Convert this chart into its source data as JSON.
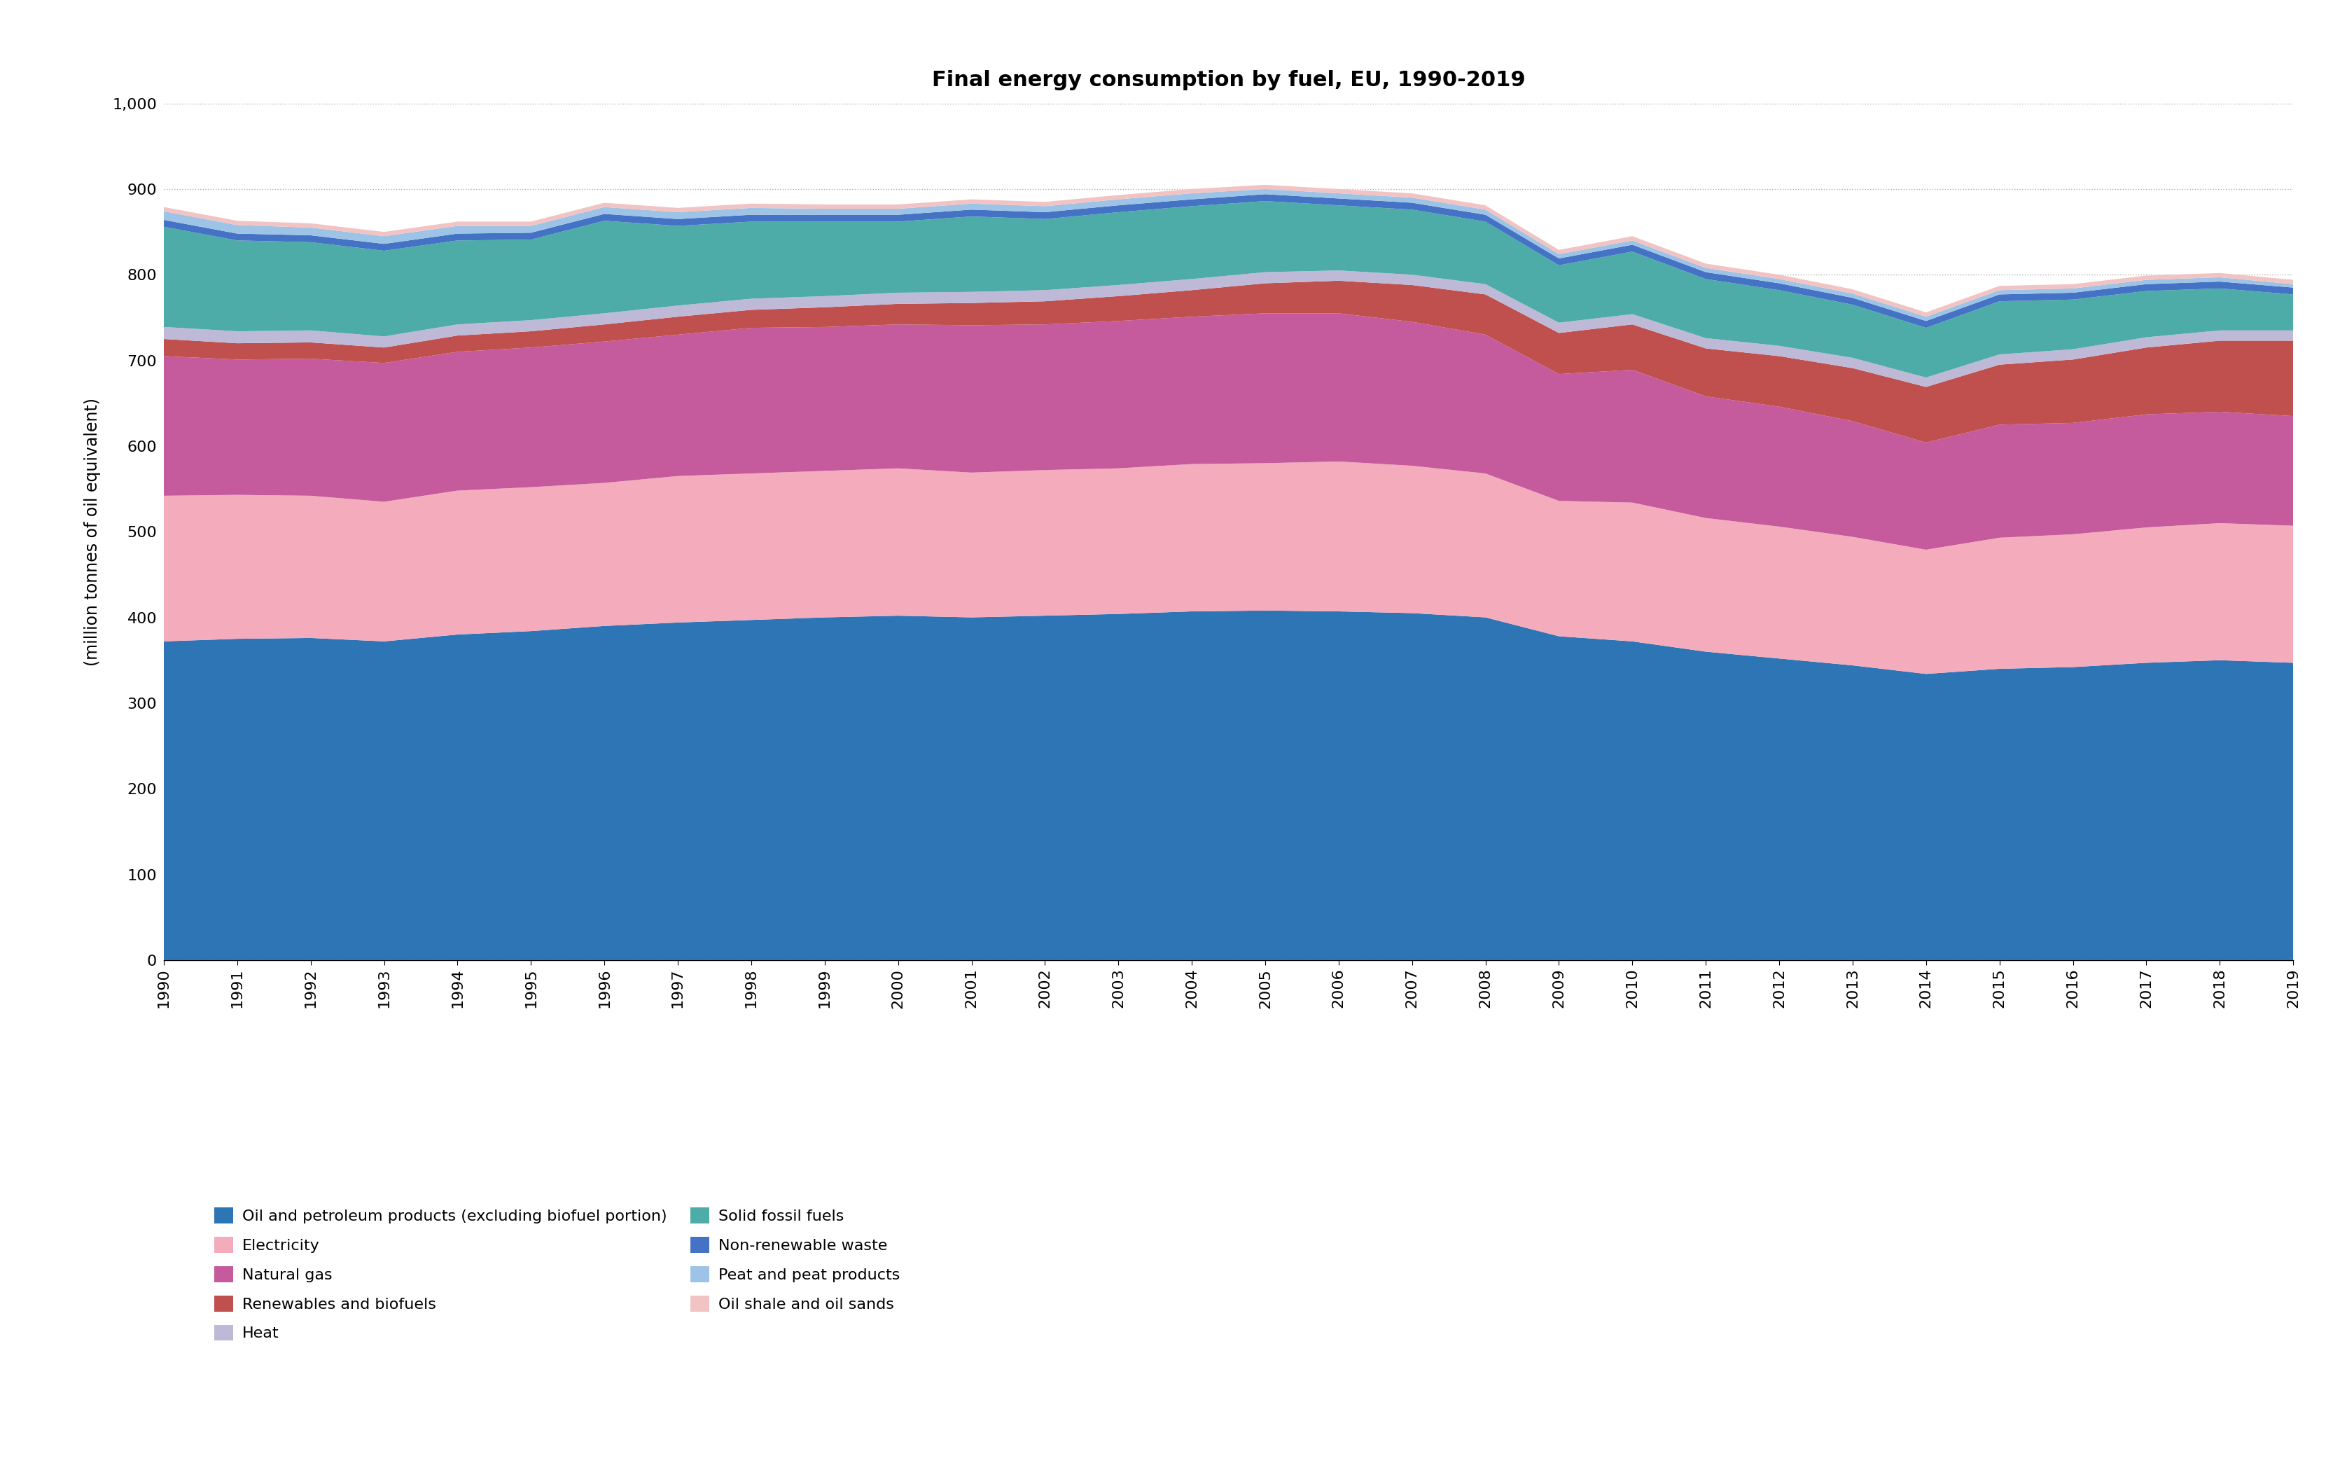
{
  "title": "Final energy consumption by fuel, EU, 1990-2019",
  "ylabel": "(million tonnes of oil equivalent)",
  "years": [
    1990,
    1991,
    1992,
    1993,
    1994,
    1995,
    1996,
    1997,
    1998,
    1999,
    2000,
    2001,
    2002,
    2003,
    2004,
    2005,
    2006,
    2007,
    2008,
    2009,
    2010,
    2011,
    2012,
    2013,
    2014,
    2015,
    2016,
    2017,
    2018,
    2019
  ],
  "series": {
    "Oil and petroleum products (excluding biofuel portion)": {
      "color": "#2E75B6",
      "data": [
        372,
        375,
        376,
        372,
        380,
        384,
        390,
        394,
        397,
        400,
        402,
        400,
        402,
        404,
        407,
        408,
        407,
        405,
        400,
        378,
        372,
        360,
        352,
        344,
        334,
        340,
        342,
        347,
        350,
        347
      ]
    },
    "Electricity": {
      "color": "#F4ABBC",
      "data": [
        170,
        168,
        166,
        163,
        168,
        168,
        167,
        171,
        171,
        171,
        172,
        169,
        170,
        170,
        172,
        172,
        175,
        172,
        168,
        158,
        162,
        156,
        154,
        150,
        145,
        153,
        155,
        158,
        160,
        160
      ]
    },
    "Natural gas": {
      "color": "#C55A9D",
      "data": [
        163,
        158,
        160,
        162,
        162,
        163,
        165,
        165,
        170,
        168,
        168,
        172,
        170,
        172,
        172,
        175,
        173,
        168,
        162,
        148,
        155,
        142,
        140,
        135,
        125,
        132,
        130,
        132,
        130,
        128
      ]
    },
    "Renewables and biofuels": {
      "color": "#C0504D",
      "data": [
        20,
        19,
        19,
        18,
        19,
        19,
        20,
        21,
        21,
        23,
        24,
        26,
        27,
        29,
        31,
        35,
        38,
        43,
        47,
        48,
        53,
        56,
        59,
        62,
        65,
        70,
        74,
        78,
        83,
        88
      ]
    },
    "Heat": {
      "color": "#BDB9D7",
      "data": [
        14,
        14,
        14,
        13,
        13,
        13,
        13,
        13,
        13,
        13,
        13,
        13,
        13,
        13,
        13,
        13,
        12,
        12,
        12,
        12,
        12,
        12,
        12,
        12,
        11,
        12,
        12,
        12,
        12,
        12
      ]
    },
    "Solid fossil fuels": {
      "color": "#4DABA8",
      "data": [
        117,
        106,
        103,
        100,
        98,
        94,
        108,
        93,
        90,
        87,
        83,
        88,
        83,
        85,
        85,
        83,
        76,
        76,
        73,
        67,
        73,
        69,
        65,
        62,
        58,
        62,
        58,
        54,
        49,
        42
      ]
    },
    "Non-renewable waste": {
      "color": "#4472C4",
      "data": [
        8,
        8,
        8,
        8,
        8,
        8,
        8,
        8,
        8,
        8,
        8,
        8,
        8,
        8,
        8,
        8,
        8,
        8,
        8,
        8,
        8,
        8,
        8,
        8,
        8,
        8,
        8,
        8,
        8,
        8
      ]
    },
    "Peat and peat products": {
      "color": "#9DC3E6",
      "data": [
        10,
        10,
        9,
        9,
        9,
        8,
        8,
        8,
        8,
        7,
        7,
        7,
        7,
        7,
        7,
        6,
        6,
        6,
        6,
        5,
        5,
        5,
        5,
        5,
        5,
        5,
        5,
        5,
        5,
        4
      ]
    },
    "Oil shale and oil sands": {
      "color": "#F2C3C3",
      "data": [
        5,
        5,
        5,
        5,
        5,
        5,
        5,
        5,
        5,
        5,
        5,
        5,
        5,
        5,
        5,
        5,
        5,
        5,
        5,
        5,
        5,
        5,
        5,
        5,
        5,
        5,
        5,
        5,
        5,
        5
      ]
    }
  },
  "ylim": [
    0,
    1000
  ],
  "yticks": [
    0,
    100,
    200,
    300,
    400,
    500,
    600,
    700,
    800,
    900,
    1000
  ],
  "ytick_labels": [
    "0",
    "100",
    "200",
    "300",
    "400",
    "500",
    "600",
    "700",
    "800",
    "900",
    "1,000"
  ],
  "stack_order": [
    "Oil and petroleum products (excluding biofuel portion)",
    "Electricity",
    "Natural gas",
    "Renewables and biofuels",
    "Heat",
    "Solid fossil fuels",
    "Non-renewable waste",
    "Peat and peat products",
    "Oil shale and oil sands"
  ],
  "legend_col1": [
    "Oil and petroleum products (excluding biofuel portion)",
    "Natural gas",
    "Heat",
    "Non-renewable waste",
    "Oil shale and oil sands"
  ],
  "legend_col2": [
    "Electricity",
    "Renewables and biofuels",
    "Solid fossil fuels",
    "Peat and peat products"
  ],
  "background_color": "#FFFFFF",
  "grid_color": "#B0B0B0",
  "title_fontsize": 22,
  "axis_label_fontsize": 17,
  "tick_fontsize": 16,
  "legend_fontsize": 16
}
